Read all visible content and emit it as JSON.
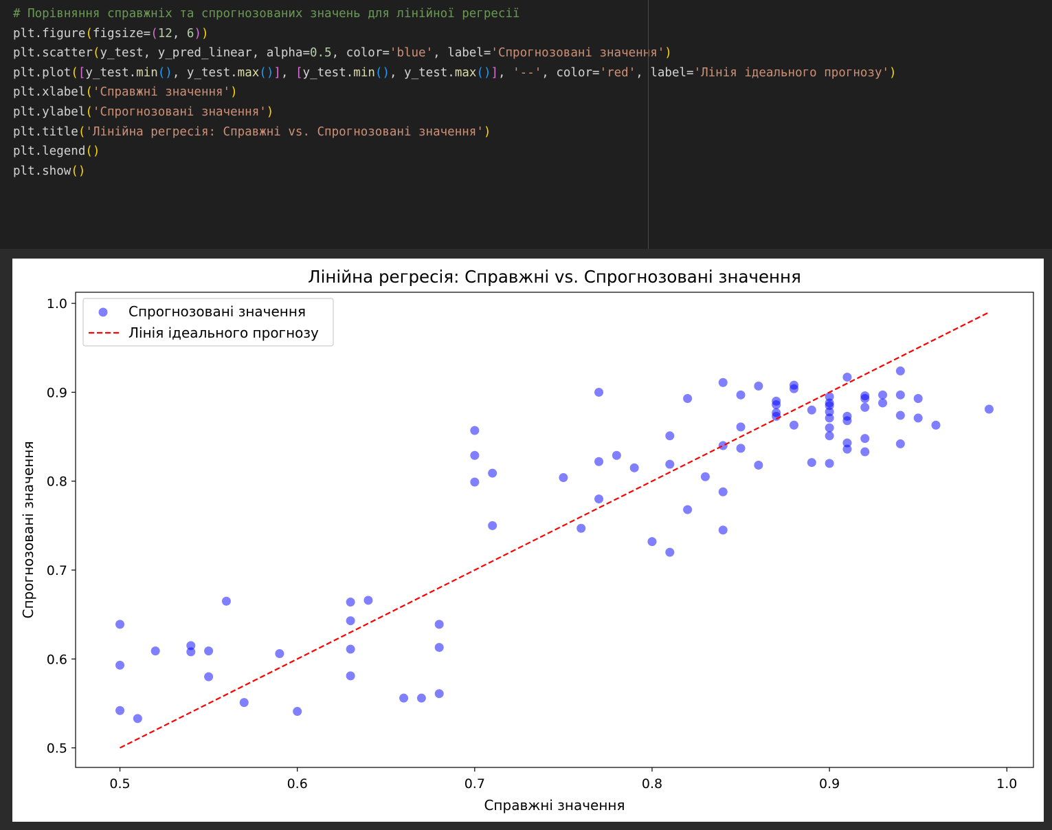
{
  "code": {
    "lines": [
      [
        {
          "t": "# Порівняння справжніх та спрогнозованих значень для лінійної регресії",
          "c": "comment"
        }
      ],
      [
        {
          "t": "plt.figure"
        },
        {
          "t": "(",
          "c": "b1"
        },
        {
          "t": "figsize="
        },
        {
          "t": "(",
          "c": "b2"
        },
        {
          "t": "12",
          "c": "num"
        },
        {
          "t": ", "
        },
        {
          "t": "6",
          "c": "num"
        },
        {
          "t": ")",
          "c": "b2"
        },
        {
          "t": ")",
          "c": "b1"
        }
      ],
      [
        {
          "t": "plt.scatter"
        },
        {
          "t": "(",
          "c": "b1"
        },
        {
          "t": "y_test, y_pred_linear, alpha="
        },
        {
          "t": "0.5",
          "c": "num"
        },
        {
          "t": ", color="
        },
        {
          "t": "'blue'",
          "c": "str"
        },
        {
          "t": ", label="
        },
        {
          "t": "'Спрогнозовані значення'",
          "c": "str"
        },
        {
          "t": ")",
          "c": "b1"
        }
      ],
      [
        {
          "t": "plt.plot"
        },
        {
          "t": "(",
          "c": "b1"
        },
        {
          "t": "[",
          "c": "b2"
        },
        {
          "t": "y_test."
        },
        {
          "t": "min",
          "c": "fn"
        },
        {
          "t": "()",
          "c": "b3"
        },
        {
          "t": ", y_test."
        },
        {
          "t": "max",
          "c": "fn"
        },
        {
          "t": "()",
          "c": "b3"
        },
        {
          "t": "]",
          "c": "b2"
        },
        {
          "t": ", "
        },
        {
          "t": "[",
          "c": "b2"
        },
        {
          "t": "y_test."
        },
        {
          "t": "min",
          "c": "fn"
        },
        {
          "t": "()",
          "c": "b3"
        },
        {
          "t": ", y_test."
        },
        {
          "t": "max",
          "c": "fn"
        },
        {
          "t": "()",
          "c": "b3"
        },
        {
          "t": "]",
          "c": "b2"
        },
        {
          "t": ", "
        },
        {
          "t": "'--'",
          "c": "str"
        },
        {
          "t": ", color="
        },
        {
          "t": "'red'",
          "c": "str"
        },
        {
          "t": ", label="
        },
        {
          "t": "'Лінія ідеального прогнозу'",
          "c": "str"
        },
        {
          "t": ")",
          "c": "b1"
        }
      ],
      [
        {
          "t": "plt.xlabel"
        },
        {
          "t": "(",
          "c": "b1"
        },
        {
          "t": "'Справжні значення'",
          "c": "str"
        },
        {
          "t": ")",
          "c": "b1"
        }
      ],
      [
        {
          "t": "plt.ylabel"
        },
        {
          "t": "(",
          "c": "b1"
        },
        {
          "t": "'Спрогнозовані значення'",
          "c": "str"
        },
        {
          "t": ")",
          "c": "b1"
        }
      ],
      [
        {
          "t": "plt.title"
        },
        {
          "t": "(",
          "c": "b1"
        },
        {
          "t": "'Лінійна регресія: Справжні vs. Спрогнозовані значення'",
          "c": "str"
        },
        {
          "t": ")",
          "c": "b1"
        }
      ],
      [
        {
          "t": "plt.legend"
        },
        {
          "t": "()",
          "c": "b1"
        }
      ],
      [
        {
          "t": "plt.show"
        },
        {
          "t": "()",
          "c": "b1"
        }
      ]
    ]
  },
  "chart_data": {
    "type": "scatter",
    "title": "Лінійна регресія: Справжні vs. Спрогнозовані значення",
    "xlabel": "Справжні значення",
    "ylabel": "Спрогнозовані значення",
    "xlim": [
      0.475,
      1.015
    ],
    "ylim": [
      0.478,
      1.0125
    ],
    "xticks": [
      0.5,
      0.6,
      0.7,
      0.8,
      0.9,
      1.0
    ],
    "xtick_labels": [
      "0.5",
      "0.6",
      "0.7",
      "0.8",
      "0.9",
      "1.0"
    ],
    "yticks": [
      0.5,
      0.6,
      0.7,
      0.8,
      0.9,
      1.0
    ],
    "ytick_labels": [
      "0.5",
      "0.6",
      "0.7",
      "0.8",
      "0.9",
      "1.0"
    ],
    "grid": false,
    "legend_position": "upper left",
    "series": [
      {
        "name": "Спрогнозовані значення",
        "kind": "scatter",
        "color": "#0000ff",
        "alpha": 0.5,
        "points": [
          [
            0.5,
            0.639
          ],
          [
            0.5,
            0.593
          ],
          [
            0.5,
            0.542
          ],
          [
            0.51,
            0.533
          ],
          [
            0.52,
            0.609
          ],
          [
            0.54,
            0.615
          ],
          [
            0.54,
            0.608
          ],
          [
            0.55,
            0.609
          ],
          [
            0.55,
            0.58
          ],
          [
            0.56,
            0.665
          ],
          [
            0.57,
            0.551
          ],
          [
            0.59,
            0.606
          ],
          [
            0.6,
            0.541
          ],
          [
            0.63,
            0.664
          ],
          [
            0.63,
            0.643
          ],
          [
            0.63,
            0.611
          ],
          [
            0.63,
            0.581
          ],
          [
            0.64,
            0.666
          ],
          [
            0.66,
            0.556
          ],
          [
            0.67,
            0.556
          ],
          [
            0.68,
            0.639
          ],
          [
            0.68,
            0.613
          ],
          [
            0.68,
            0.561
          ],
          [
            0.7,
            0.857
          ],
          [
            0.7,
            0.829
          ],
          [
            0.7,
            0.799
          ],
          [
            0.71,
            0.809
          ],
          [
            0.71,
            0.75
          ],
          [
            0.75,
            0.804
          ],
          [
            0.76,
            0.747
          ],
          [
            0.77,
            0.9
          ],
          [
            0.77,
            0.822
          ],
          [
            0.77,
            0.78
          ],
          [
            0.78,
            0.829
          ],
          [
            0.79,
            0.815
          ],
          [
            0.8,
            0.732
          ],
          [
            0.81,
            0.851
          ],
          [
            0.81,
            0.819
          ],
          [
            0.81,
            0.72
          ],
          [
            0.82,
            0.893
          ],
          [
            0.82,
            0.768
          ],
          [
            0.83,
            0.805
          ],
          [
            0.84,
            0.911
          ],
          [
            0.84,
            0.84
          ],
          [
            0.84,
            0.788
          ],
          [
            0.84,
            0.745
          ],
          [
            0.85,
            0.897
          ],
          [
            0.85,
            0.861
          ],
          [
            0.85,
            0.837
          ],
          [
            0.86,
            0.907
          ],
          [
            0.86,
            0.818
          ],
          [
            0.87,
            0.89
          ],
          [
            0.87,
            0.886
          ],
          [
            0.87,
            0.877
          ],
          [
            0.87,
            0.873
          ],
          [
            0.88,
            0.908
          ],
          [
            0.88,
            0.904
          ],
          [
            0.88,
            0.863
          ],
          [
            0.89,
            0.88
          ],
          [
            0.89,
            0.821
          ],
          [
            0.9,
            0.895
          ],
          [
            0.9,
            0.888
          ],
          [
            0.9,
            0.885
          ],
          [
            0.9,
            0.878
          ],
          [
            0.9,
            0.871
          ],
          [
            0.9,
            0.86
          ],
          [
            0.9,
            0.851
          ],
          [
            0.9,
            0.82
          ],
          [
            0.91,
            0.917
          ],
          [
            0.91,
            0.873
          ],
          [
            0.91,
            0.868
          ],
          [
            0.91,
            0.843
          ],
          [
            0.91,
            0.836
          ],
          [
            0.92,
            0.896
          ],
          [
            0.92,
            0.893
          ],
          [
            0.92,
            0.883
          ],
          [
            0.92,
            0.848
          ],
          [
            0.92,
            0.833
          ],
          [
            0.93,
            0.897
          ],
          [
            0.93,
            0.888
          ],
          [
            0.94,
            0.924
          ],
          [
            0.94,
            0.897
          ],
          [
            0.94,
            0.874
          ],
          [
            0.94,
            0.842
          ],
          [
            0.95,
            0.893
          ],
          [
            0.95,
            0.871
          ],
          [
            0.96,
            0.863
          ],
          [
            0.99,
            0.881
          ]
        ]
      },
      {
        "name": "Лінія ідеального прогнозу",
        "kind": "line",
        "style": "dashed",
        "color": "#ff0000",
        "x": [
          0.5,
          0.99
        ],
        "y": [
          0.5,
          0.99
        ]
      }
    ]
  }
}
